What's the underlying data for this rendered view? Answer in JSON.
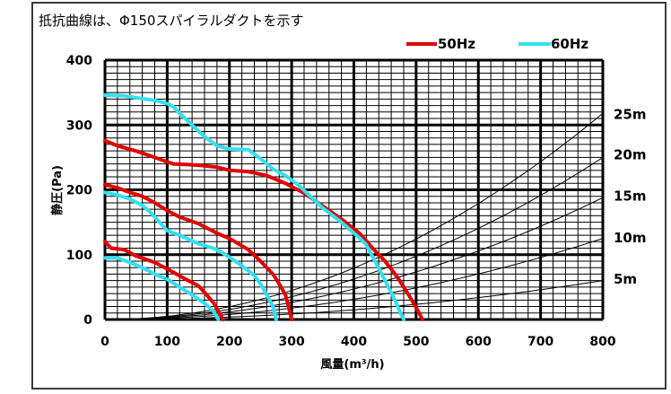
{
  "chart_data": {
    "type": "line",
    "title": "抵抗曲線は、Φ150スパイラルダクトを示す",
    "xlabel": "風量(m³/h)",
    "ylabel": "静圧(Pa)",
    "xlim": [
      0,
      800
    ],
    "ylim": [
      0,
      400
    ],
    "x_ticks": [
      "0",
      "100",
      "200",
      "300",
      "400",
      "500",
      "600",
      "700",
      "800"
    ],
    "y_ticks": [
      "0",
      "100",
      "200",
      "300",
      "400"
    ],
    "grid": true,
    "legend_position": "top-right",
    "series": [
      {
        "name": "50Hz",
        "color": "#e00000",
        "curves": [
          [
            [
              0,
              276
            ],
            [
              20,
              268
            ],
            [
              50,
              260
            ],
            [
              80,
              250
            ],
            [
              100,
              243
            ],
            [
              110,
              240
            ],
            [
              150,
              238
            ],
            [
              180,
              235
            ],
            [
              200,
              230
            ],
            [
              230,
              228
            ],
            [
              260,
              222
            ],
            [
              290,
              210
            ],
            [
              320,
              195
            ],
            [
              350,
              175
            ],
            [
              380,
              155
            ],
            [
              410,
              132
            ],
            [
              430,
              110
            ],
            [
              450,
              90
            ],
            [
              470,
              65
            ],
            [
              490,
              35
            ],
            [
              505,
              10
            ],
            [
              510,
              0
            ]
          ],
          [
            [
              0,
              208
            ],
            [
              20,
              203
            ],
            [
              40,
              196
            ],
            [
              60,
              190
            ],
            [
              80,
              180
            ],
            [
              100,
              168
            ],
            [
              120,
              158
            ],
            [
              150,
              148
            ],
            [
              180,
              133
            ],
            [
              200,
              125
            ],
            [
              230,
              108
            ],
            [
              250,
              90
            ],
            [
              270,
              70
            ],
            [
              280,
              55
            ],
            [
              290,
              38
            ],
            [
              295,
              20
            ],
            [
              300,
              0
            ]
          ],
          [
            [
              0,
              120
            ],
            [
              10,
              110
            ],
            [
              30,
              108
            ],
            [
              50,
              98
            ],
            [
              80,
              88
            ],
            [
              100,
              78
            ],
            [
              130,
              62
            ],
            [
              150,
              52
            ],
            [
              160,
              42
            ],
            [
              175,
              25
            ],
            [
              185,
              8
            ],
            [
              190,
              0
            ]
          ]
        ]
      },
      {
        "name": "60Hz",
        "color": "#33e0f0",
        "curves": [
          [
            [
              0,
              346
            ],
            [
              30,
              345
            ],
            [
              50,
              342
            ],
            [
              80,
              338
            ],
            [
              100,
              333
            ],
            [
              110,
              328
            ],
            [
              120,
              318
            ],
            [
              140,
              300
            ],
            [
              160,
              282
            ],
            [
              180,
              268
            ],
            [
              200,
              263
            ],
            [
              230,
              262
            ],
            [
              250,
              248
            ],
            [
              270,
              232
            ],
            [
              290,
              222
            ],
            [
              310,
              208
            ],
            [
              330,
              190
            ],
            [
              350,
              172
            ],
            [
              380,
              150
            ],
            [
              410,
              125
            ],
            [
              420,
              115
            ],
            [
              435,
              88
            ],
            [
              450,
              60
            ],
            [
              465,
              32
            ],
            [
              475,
              10
            ],
            [
              480,
              0
            ]
          ],
          [
            [
              0,
              196
            ],
            [
              20,
              192
            ],
            [
              40,
              186
            ],
            [
              60,
              176
            ],
            [
              70,
              168
            ],
            [
              80,
              158
            ],
            [
              100,
              137
            ],
            [
              120,
              130
            ],
            [
              150,
              117
            ],
            [
              180,
              108
            ],
            [
              200,
              96
            ],
            [
              220,
              83
            ],
            [
              240,
              68
            ],
            [
              250,
              55
            ],
            [
              260,
              38
            ],
            [
              270,
              20
            ],
            [
              275,
              0
            ]
          ],
          [
            [
              0,
              95
            ],
            [
              20,
              95
            ],
            [
              40,
              88
            ],
            [
              60,
              80
            ],
            [
              80,
              70
            ],
            [
              100,
              62
            ],
            [
              120,
              50
            ],
            [
              140,
              38
            ],
            [
              160,
              25
            ],
            [
              175,
              12
            ],
            [
              182,
              0
            ]
          ]
        ]
      }
    ],
    "duct_lengths": [
      "5m",
      "10m",
      "15m",
      "20m",
      "25m"
    ],
    "duct_y_at_800": [
      60,
      125,
      188,
      250,
      318
    ],
    "duct_label_y": [
      62,
      126,
      190,
      254,
      316
    ]
  }
}
